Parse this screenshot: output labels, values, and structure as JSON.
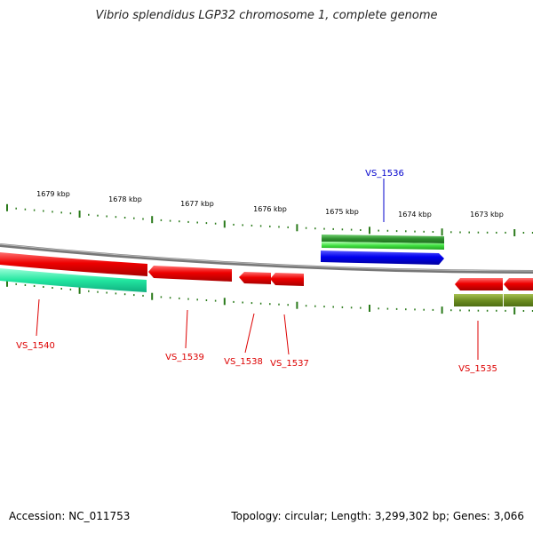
{
  "title": "Vibrio splendidus LGP32 chromosome 1, complete genome",
  "footer": {
    "accession": "Accession: NC_011753",
    "summary": "Topology: circular; Length: 3,299,302 bp; Genes: 3,066"
  },
  "scale": {
    "unit": "kbp",
    "labels": [
      "1679 kbp",
      "1678 kbp",
      "1677 kbp",
      "1676 kbp",
      "1675 kbp",
      "1674 kbp",
      "1673 kbp"
    ]
  },
  "genes": [
    {
      "name": "VS_1540",
      "label": "VS_1540",
      "strand": "reverse",
      "color": "#ff0000"
    },
    {
      "name": "VS_1539",
      "label": "VS_1539",
      "strand": "reverse",
      "color": "#ff0000"
    },
    {
      "name": "VS_1538",
      "label": "VS_1538",
      "strand": "reverse",
      "color": "#ff0000"
    },
    {
      "name": "VS_1537",
      "label": "VS_1537",
      "strand": "reverse",
      "color": "#ff0000"
    },
    {
      "name": "VS_1536",
      "label": "VS_1536",
      "strand": "forward",
      "color": "#0000ff"
    },
    {
      "name": "VS_1535",
      "label": "VS_1535",
      "strand": "reverse",
      "color": "#ff0000"
    }
  ],
  "colors": {
    "cds_reverse": "#ff0000",
    "cds_forward": "#0000ff",
    "feature_teal": "#33e0a8",
    "feature_green": "#3a9a3a",
    "feature_olive": "#7a9a2a",
    "backbone": "#888888",
    "ticks": "#2a7a1a"
  }
}
